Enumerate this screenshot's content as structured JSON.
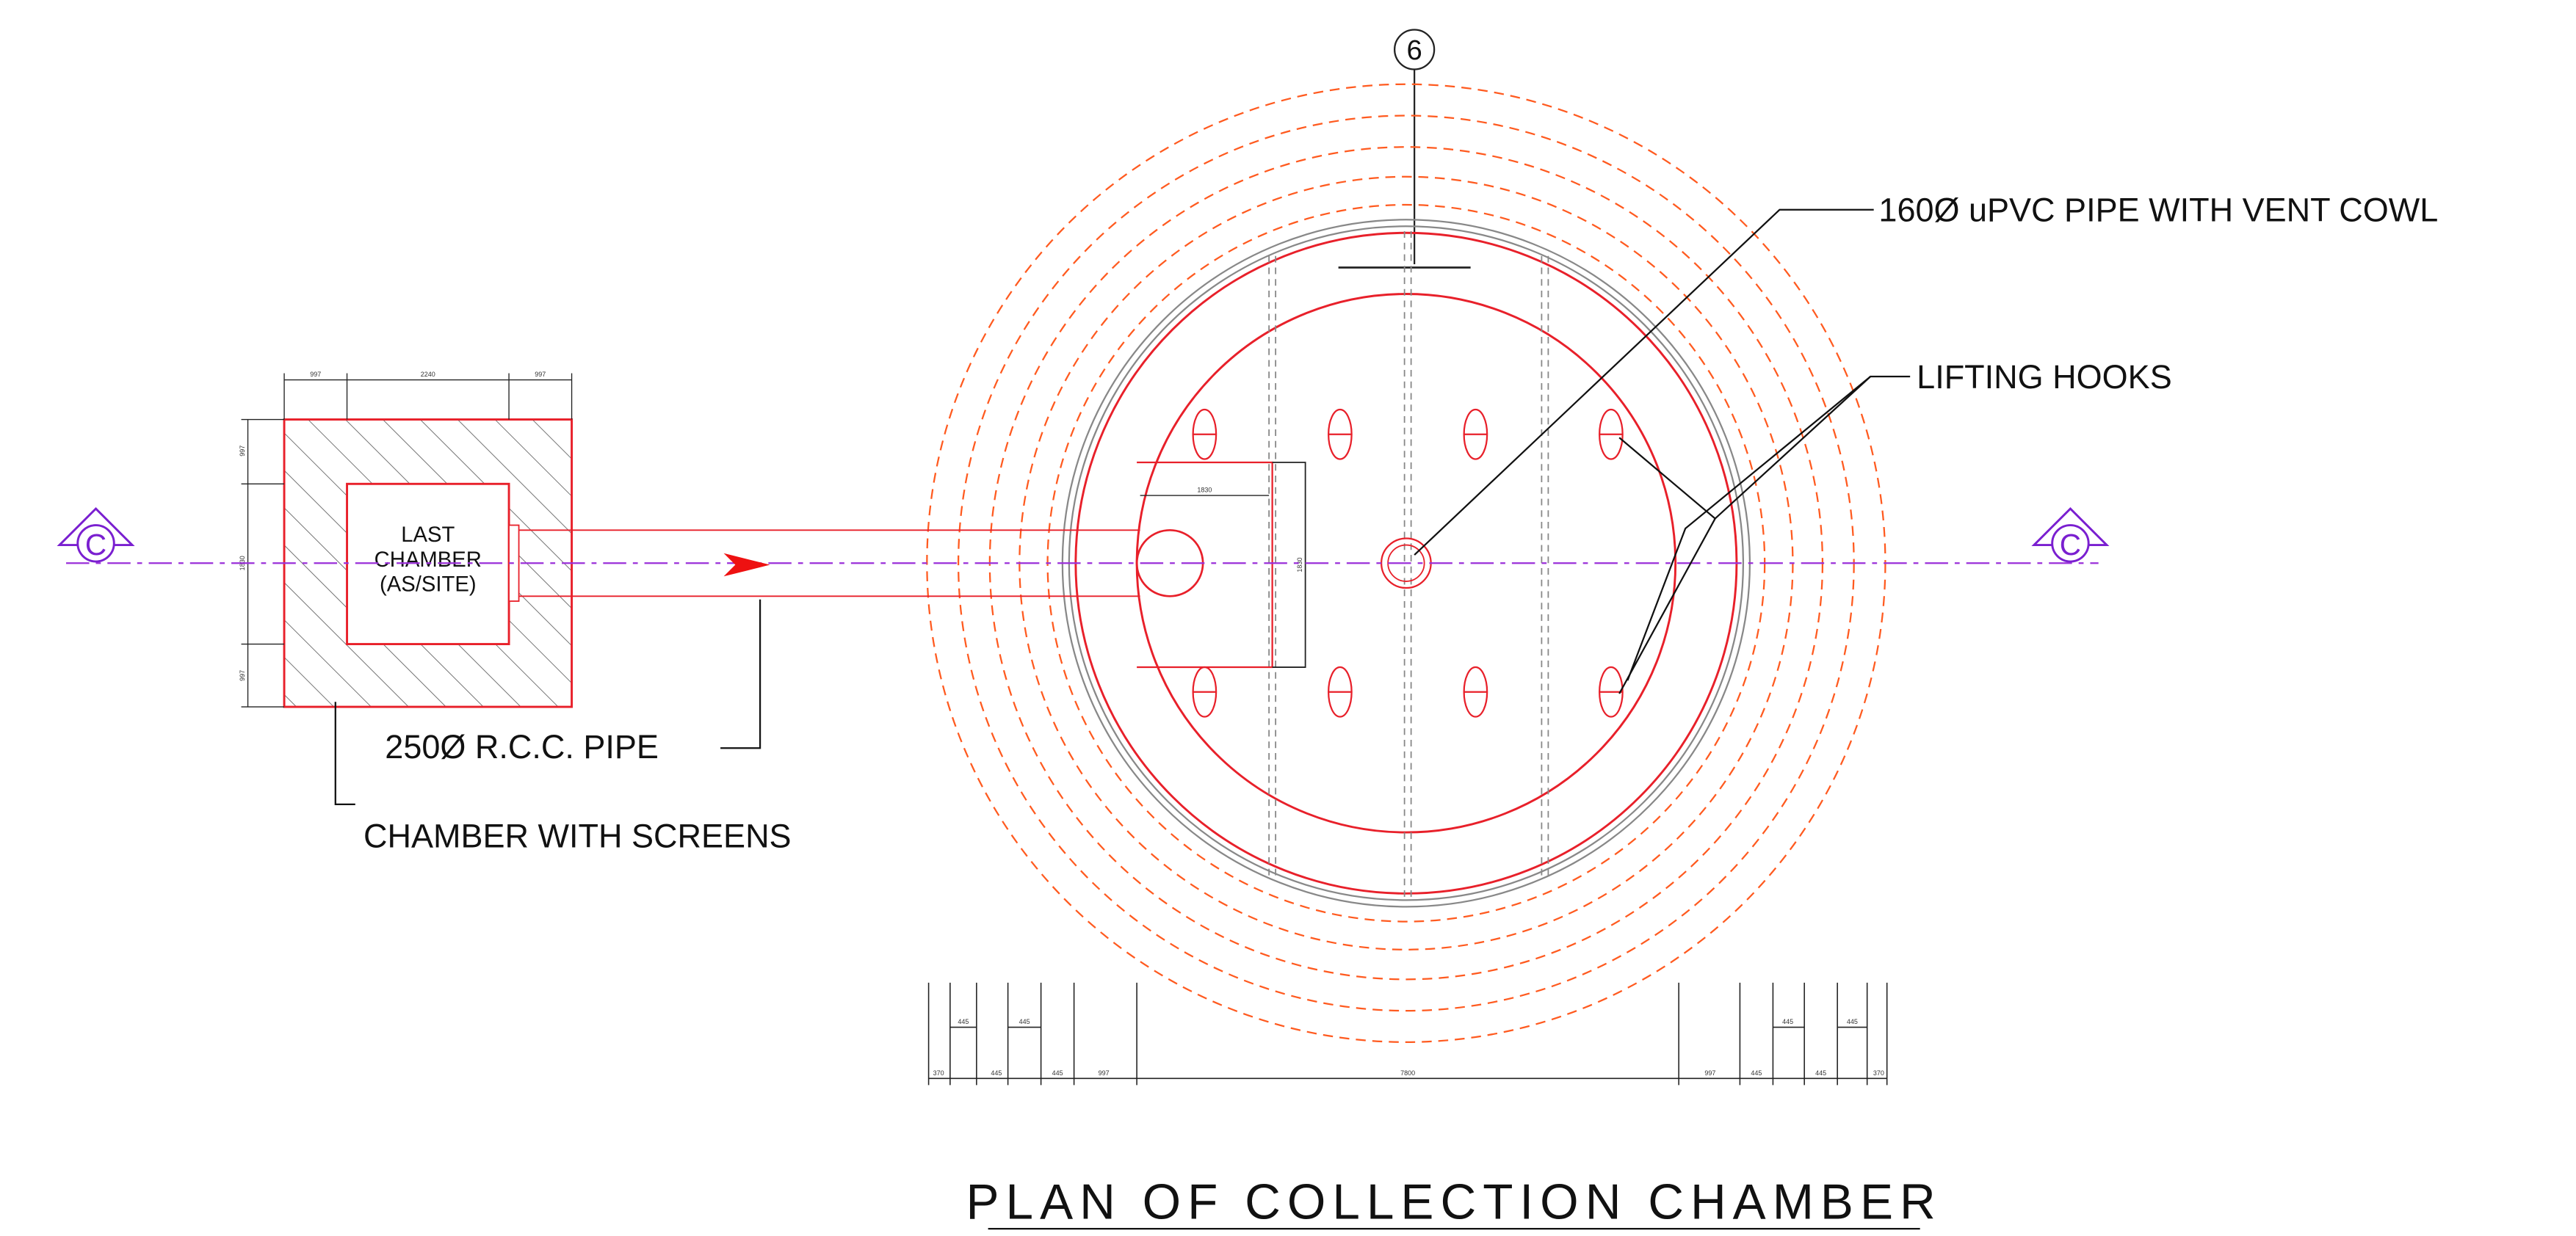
{
  "grid_marker": "6",
  "labels": {
    "vent_pipe": "160Ø uPVC PIPE WITH VENT COWL",
    "lifting_hooks": "LIFTING HOOKS",
    "rcc_pipe": "250Ø R.C.C. PIPE",
    "chamber_screens": "CHAMBER WITH SCREENS"
  },
  "chamber": {
    "lines": [
      "LAST",
      "CHAMBER",
      "(AS/SITE)"
    ]
  },
  "section_marks": [
    "C",
    "C"
  ],
  "dimensions": {
    "top": [
      "997",
      "2240",
      "997"
    ],
    "left": [
      "997",
      "1830",
      "997"
    ],
    "inner": [
      "1830",
      "1830"
    ],
    "bottom_upper": [
      "445",
      "445",
      "445",
      "445"
    ],
    "bottom": [
      "370",
      "445",
      "445",
      "997",
      "7800",
      "997",
      "445",
      "445",
      "370"
    ]
  },
  "title": "PLAN OF COLLECTION CHAMBER"
}
